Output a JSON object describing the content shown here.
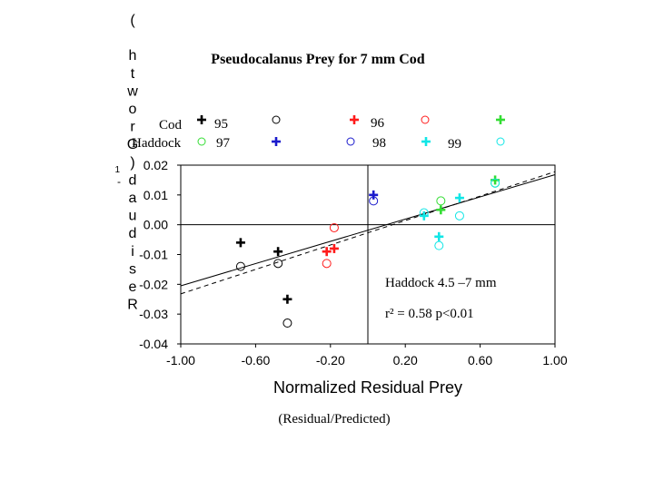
{
  "chart_data": {
    "type": "scatter",
    "title": "Pseudocalanus Prey for 7 mm Cod",
    "xlabel": "Normalized Residual Prey",
    "xlabel_sub": "(Residual/Predicted)",
    "ylabel": "Residual Growth (d-1)",
    "xlim": [
      -1.0,
      1.0
    ],
    "ylim": [
      -0.04,
      0.02
    ],
    "xticks": [
      "-1.00",
      "-0.60",
      "-0.20",
      "0.20",
      "0.60",
      "1.00"
    ],
    "xtick_values": [
      -1.0,
      -0.6,
      -0.2,
      0.2,
      0.6,
      1.0
    ],
    "yticks": [
      "0.02",
      "0.01",
      "0.00",
      "-0.01",
      "-0.02",
      "-0.03",
      "-0.04"
    ],
    "ytick_values": [
      0.02,
      0.01,
      0.0,
      -0.01,
      -0.02,
      -0.03,
      -0.04
    ],
    "grid": false,
    "reference_lines": {
      "x": 0.0,
      "y": 0.0
    },
    "legend": {
      "placement": "top",
      "row_labels": [
        "Cod",
        "Haddock"
      ],
      "years": [
        "95",
        "96",
        "97",
        "98",
        "99"
      ],
      "colors": {
        "95": "#000000",
        "96": "#ff1a1a",
        "97": "#33dd33",
        "98": "#1a1acc",
        "99": "#11e6e6"
      }
    },
    "series": [
      {
        "species": "Cod",
        "year": "95",
        "marker": "plus",
        "color": "#000000",
        "points": [
          [
            -0.68,
            -0.006
          ],
          [
            -0.48,
            -0.009
          ],
          [
            -0.43,
            -0.025
          ]
        ]
      },
      {
        "species": "Haddock",
        "year": "95",
        "marker": "circle",
        "color": "#000000",
        "points": [
          [
            -0.68,
            -0.014
          ],
          [
            -0.48,
            -0.013
          ],
          [
            -0.43,
            -0.033
          ]
        ]
      },
      {
        "species": "Cod",
        "year": "96",
        "marker": "plus",
        "color": "#ff1a1a",
        "points": [
          [
            -0.22,
            -0.009
          ],
          [
            -0.18,
            -0.008
          ]
        ]
      },
      {
        "species": "Haddock",
        "year": "96",
        "marker": "circle",
        "color": "#ff1a1a",
        "points": [
          [
            -0.22,
            -0.013
          ],
          [
            -0.18,
            -0.001
          ]
        ]
      },
      {
        "species": "Cod",
        "year": "97",
        "marker": "plus",
        "color": "#33dd33",
        "points": [
          [
            0.39,
            0.005
          ],
          [
            0.68,
            0.015
          ]
        ]
      },
      {
        "species": "Haddock",
        "year": "97",
        "marker": "circle",
        "color": "#33dd33",
        "points": [
          [
            0.39,
            0.008
          ],
          [
            0.68,
            0.014
          ]
        ]
      },
      {
        "species": "Cod",
        "year": "98",
        "marker": "plus",
        "color": "#1a1acc",
        "points": [
          [
            0.03,
            0.01
          ]
        ]
      },
      {
        "species": "Haddock",
        "year": "98",
        "marker": "circle",
        "color": "#1a1acc",
        "points": [
          [
            0.03,
            0.008
          ]
        ]
      },
      {
        "species": "Cod",
        "year": "99",
        "marker": "plus",
        "color": "#11e6e6",
        "points": [
          [
            0.3,
            0.003
          ],
          [
            0.38,
            -0.004
          ],
          [
            0.49,
            0.009
          ]
        ]
      },
      {
        "species": "Haddock",
        "year": "99",
        "marker": "circle",
        "color": "#11e6e6",
        "points": [
          [
            0.3,
            0.004
          ],
          [
            0.38,
            -0.007
          ],
          [
            0.49,
            0.003
          ],
          [
            0.68,
            0.014
          ]
        ]
      }
    ],
    "fit_lines": [
      {
        "style": "solid",
        "color": "#000000",
        "points": [
          [
            -1.0,
            -0.0205
          ],
          [
            1.0,
            0.0168
          ]
        ]
      },
      {
        "style": "dashed",
        "color": "#000000",
        "points": [
          [
            -1.0,
            -0.0232
          ],
          [
            1.0,
            0.0178
          ]
        ]
      }
    ],
    "annotations": [
      {
        "text": "Haddock 4.5 –7 mm",
        "x": 0.1,
        "y": -0.02
      },
      {
        "text": "r² = 0.58   p<0.01",
        "x": 0.1,
        "y": -0.03
      }
    ]
  }
}
